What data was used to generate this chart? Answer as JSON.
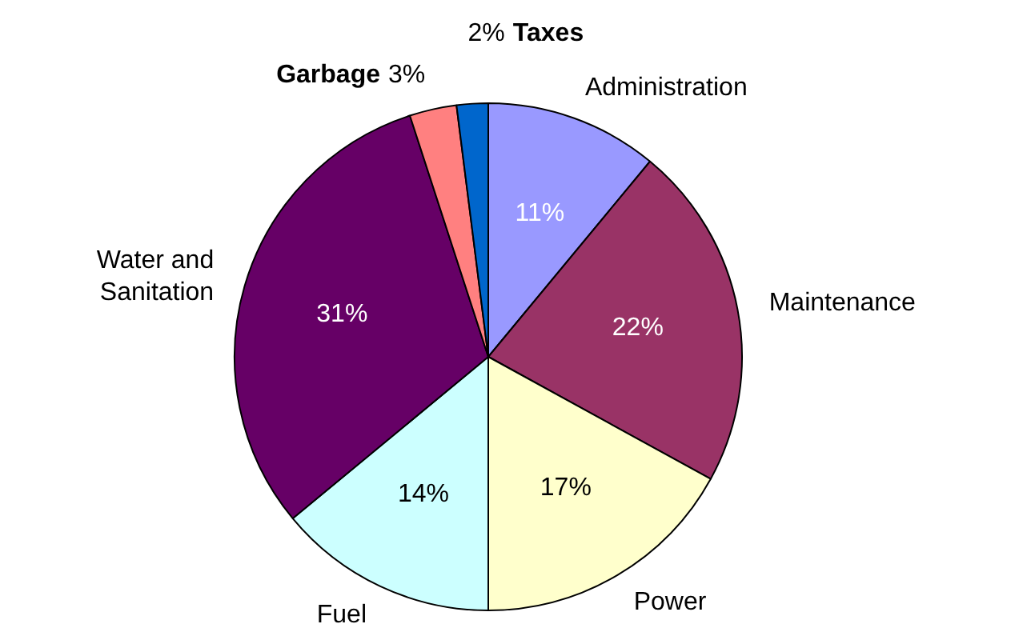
{
  "chart_data": {
    "type": "pie",
    "categories": [
      "Administration",
      "Maintenance",
      "Power",
      "Fuel",
      "Water and Sanitation",
      "Garbage",
      "Taxes"
    ],
    "values": [
      11,
      22,
      17,
      14,
      31,
      3,
      2
    ],
    "value_labels": [
      "11%",
      "22%",
      "17%",
      "14%",
      "31%",
      "3%",
      "2%"
    ],
    "colors": [
      "#9999ff",
      "#993366",
      "#ffffcc",
      "#ccffff",
      "#660066",
      "#ff8080",
      "#0066cc"
    ],
    "legend": false
  }
}
